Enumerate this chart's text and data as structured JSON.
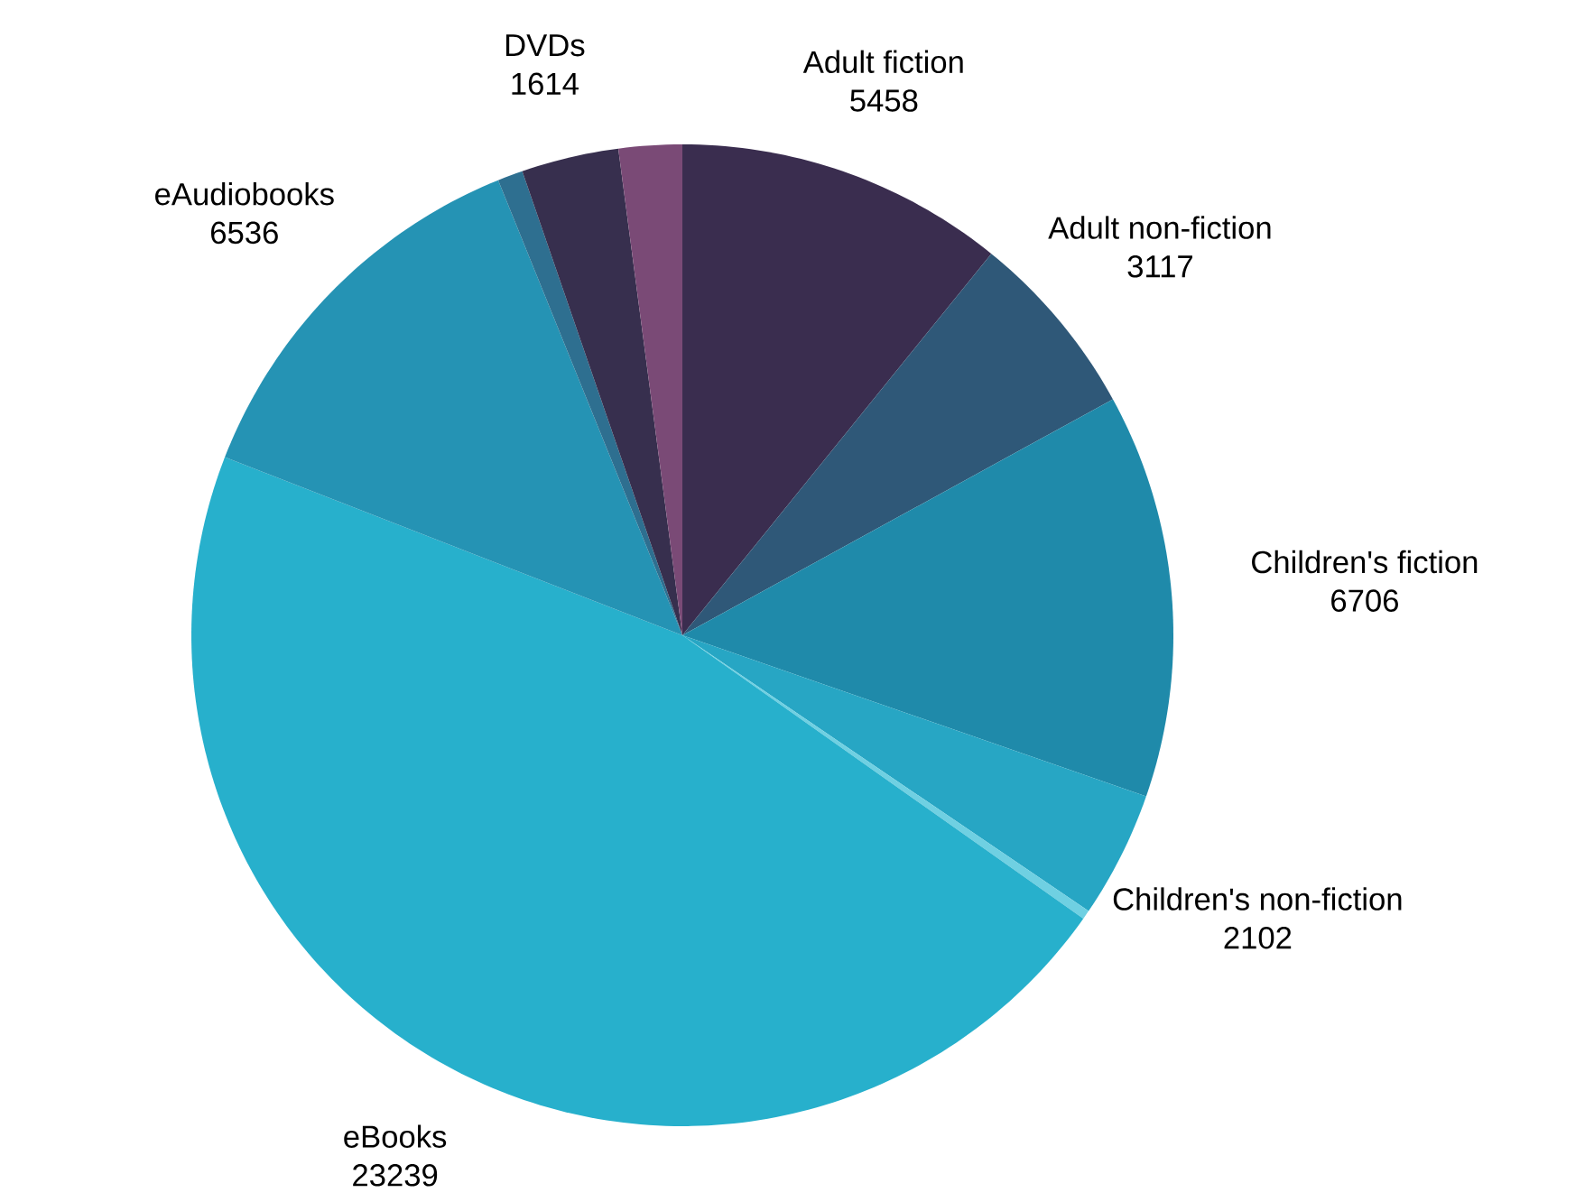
{
  "chart_data": {
    "type": "pie",
    "categories": [
      "Adult fiction",
      "Adult non-fiction",
      "Children's fiction",
      "Children's non-fiction",
      null,
      "eBooks",
      "eAudiobooks",
      null,
      "DVDs",
      null
    ],
    "values": [
      5458,
      3117,
      6706,
      2102,
      150,
      23239,
      6536,
      420,
      1614,
      1050
    ],
    "value_labels": [
      "5458",
      "3117",
      "6706",
      "2102",
      null,
      "23239",
      "6536",
      null,
      "1614",
      null
    ],
    "colors": [
      "#3a2d4f",
      "#2f5878",
      "#1f8aaa",
      "#27a6c4",
      "#6fd0e2",
      "#27b0cc",
      "#2593b4",
      "#2e6f90",
      "#372f4e",
      "#7a4a76"
    ]
  }
}
